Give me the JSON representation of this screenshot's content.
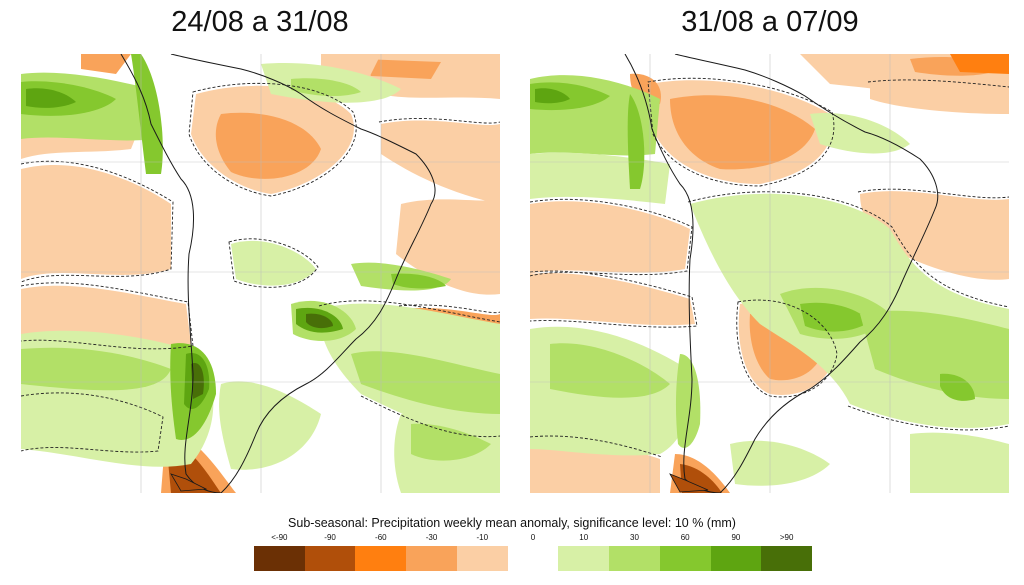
{
  "panels": [
    {
      "title": "24/08 a 31/08"
    },
    {
      "title": "31/08 a 07/09"
    }
  ],
  "legend": {
    "title": "Sub-seasonal: Precipitation weekly mean anomaly, significance level: 10 % (mm)",
    "ticks": [
      "<-90",
      "-90",
      "-60",
      "-30",
      "-10",
      "0",
      "10",
      "30",
      "60",
      "90",
      ">90"
    ],
    "colors": [
      "#6b3005",
      "#b04f0a",
      "#ff7f10",
      "#f9a35a",
      "#fbcfa5",
      "#ffffff",
      "#d7f0a6",
      "#b2e067",
      "#85c82e",
      "#5ea511",
      "#486f08"
    ]
  }
}
